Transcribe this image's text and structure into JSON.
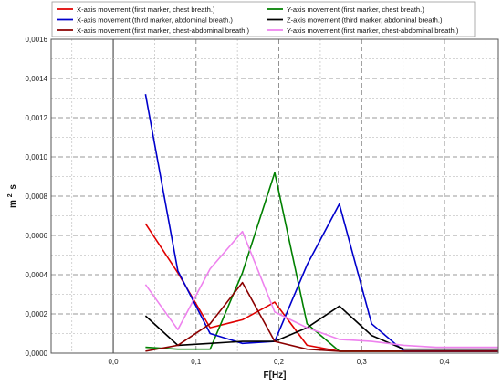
{
  "chart_data": {
    "type": "line",
    "xlabel": "F[Hz]",
    "ylabel": "m² s",
    "ylabel_base": "m",
    "ylabel_sup": "2",
    "ylabel_rest": "s",
    "xlim": [
      -0.075,
      0.465
    ],
    "ylim": [
      0,
      0.0016
    ],
    "x_ticks": [
      0.0,
      0.1,
      0.2,
      0.3,
      0.4
    ],
    "x_tick_labels": [
      "0,0",
      "0,1",
      "0,2",
      "0,3",
      "0,4"
    ],
    "y_ticks": [
      0,
      0.0002,
      0.0004,
      0.0006,
      0.0008,
      0.001,
      0.0012,
      0.0014,
      0.0016
    ],
    "y_tick_labels": [
      "0,0000",
      "0,0002",
      "0,0004",
      "0,0006",
      "0,0008",
      "0,0010",
      "0,0012",
      "0,0014",
      "0,0016"
    ],
    "grid": true,
    "legend_position": "top",
    "x": [
      0.039,
      0.078,
      0.117,
      0.156,
      0.195,
      0.234,
      0.273,
      0.312,
      0.351,
      0.39,
      0.429,
      0.468
    ],
    "series": [
      {
        "name": "X-axis movement (first marker, chest breath.)",
        "color": "#e00000",
        "values": [
          0.00066,
          0.00041,
          0.00013,
          0.00017,
          0.00026,
          4e-05,
          1e-05,
          1e-05,
          1e-05,
          1e-05,
          1e-05,
          1e-05
        ]
      },
      {
        "name": "Y-axis movement (first marker, chest breath.)",
        "color": "#008000",
        "values": [
          3e-05,
          2e-05,
          2e-05,
          0.00041,
          0.00092,
          0.00015,
          1e-05,
          1e-05,
          1e-05,
          1e-05,
          1e-05,
          1e-05
        ]
      },
      {
        "name": "X-axis movement (third marker, abdominal breath.)",
        "color": "#0000cc",
        "values": [
          0.00132,
          0.00042,
          0.0001,
          5e-05,
          6e-05,
          0.00045,
          0.00076,
          0.00015,
          1e-05,
          1e-05,
          1e-05,
          1e-05
        ]
      },
      {
        "name": "Z-axis movement (third marker, abdominal breath.)",
        "color": "#000000",
        "values": [
          0.00019,
          4e-05,
          5e-05,
          6e-05,
          6e-05,
          0.00013,
          0.00024,
          9e-05,
          2e-05,
          2e-05,
          2e-05,
          2e-05
        ]
      },
      {
        "name": "X-axis movement (first marker, chest-abdominal breath.)",
        "color": "#8b0000",
        "values": [
          1e-05,
          4e-05,
          0.00015,
          0.00036,
          6e-05,
          2e-05,
          1e-05,
          1e-05,
          1e-05,
          1e-05,
          1e-05,
          1e-05
        ]
      },
      {
        "name": "Y-axis movement (first marker, chest-abdominal breath.)",
        "color": "#ee82ee",
        "values": [
          0.00035,
          0.00012,
          0.00043,
          0.00062,
          0.00021,
          0.00013,
          7e-05,
          6e-05,
          4e-05,
          3e-05,
          3e-05,
          3e-05
        ]
      }
    ]
  }
}
